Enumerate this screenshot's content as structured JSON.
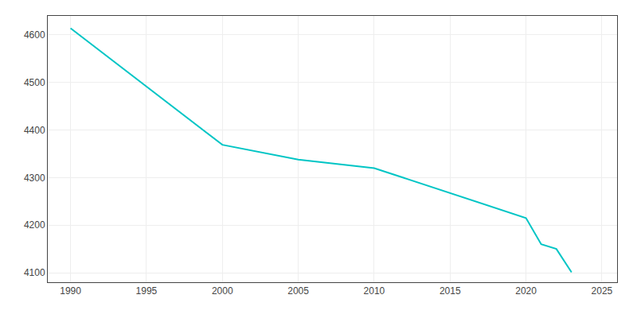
{
  "chart_data": {
    "type": "line",
    "x": [
      1990,
      2000,
      2005,
      2010,
      2020,
      2021,
      2022,
      2023
    ],
    "values": [
      4614,
      4369,
      4338,
      4320,
      4215,
      4160,
      4150,
      4101
    ],
    "color": "#00C5C5",
    "xlim": [
      1988.5,
      2026
    ],
    "ylim": [
      4080,
      4640
    ],
    "xticks": [
      1990,
      1995,
      2000,
      2005,
      2010,
      2015,
      2020,
      2025
    ],
    "yticks": [
      4100,
      4200,
      4300,
      4400,
      4500,
      4600
    ],
    "grid": true
  }
}
